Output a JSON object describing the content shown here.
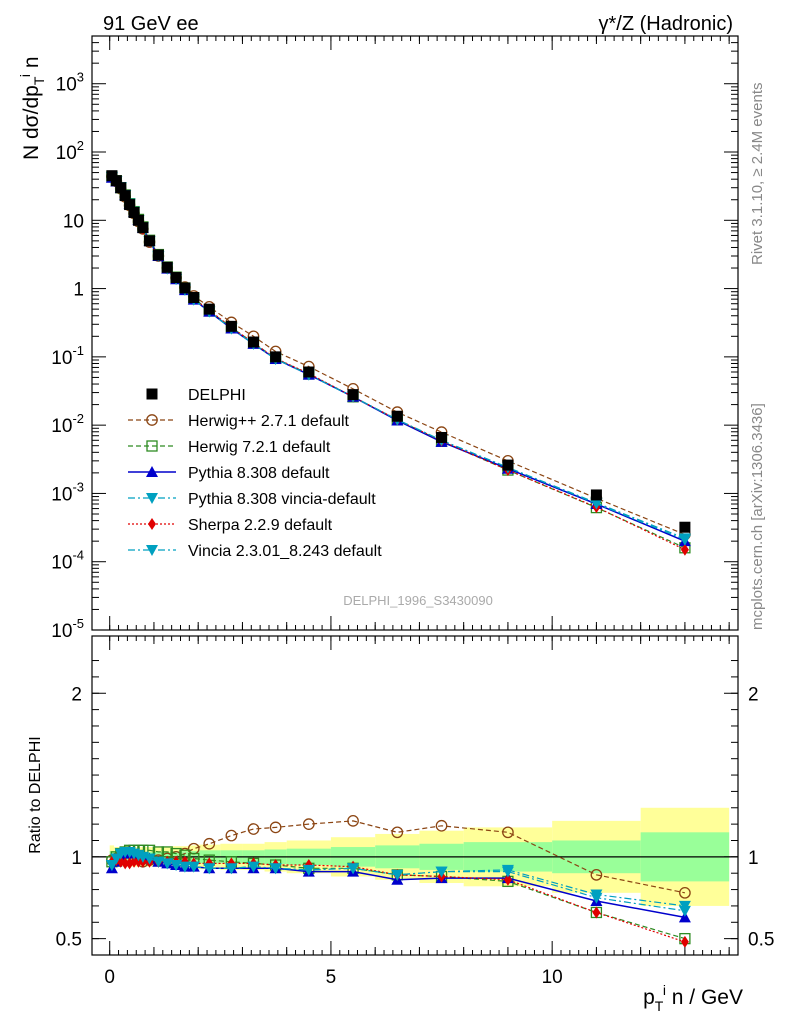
{
  "header": {
    "left_title": "91 GeV ee",
    "right_title": "γ*/Z (Hadronic)"
  },
  "side_text": {
    "rivet": "Rivet 3.1.10, ≥ 2.4M events",
    "mcplots": "mcplots.cern.ch [arXiv:1306.3436]"
  },
  "analysis_label": "DELPHI_1996_S3430090",
  "top_ylabel": "N dσ/dp_T^i n",
  "ratio_ylabel": "Ratio to DELPHI",
  "xlabel": "p_T^i n / GeV",
  "colors": {
    "data": "#000000",
    "herwigpp": "#8B4513",
    "herwig7": "#2E8B22",
    "pythia": "#0000CC",
    "pythia_vincia": "#00A0C0",
    "sherpa": "#E00000",
    "vincia": "#00A0C0",
    "band_inner": "#99FF99",
    "band_outer": "#FFFF99"
  },
  "chart_data": [
    {
      "type": "line",
      "name": "main",
      "yscale": "log",
      "xlim": [
        -0.4,
        14.2
      ],
      "ylim": [
        1e-05,
        5000
      ],
      "y_ticks": [
        "10^-5",
        "10^-4",
        "10^-3",
        "10^-2",
        "10^-1",
        "1",
        "10",
        "10^2",
        "10^3"
      ],
      "x": [
        0.05,
        0.15,
        0.25,
        0.35,
        0.45,
        0.55,
        0.65,
        0.75,
        0.9,
        1.1,
        1.3,
        1.5,
        1.7,
        1.9,
        2.25,
        2.75,
        3.25,
        3.75,
        4.5,
        5.5,
        6.5,
        7.5,
        9.0,
        11.0,
        13.0
      ],
      "legend_position": "left",
      "series": [
        {
          "name": "DELPHI",
          "key": "data",
          "values": [
            45,
            38,
            30,
            23,
            17,
            13,
            10,
            7.8,
            5.0,
            3.1,
            2.05,
            1.45,
            1.02,
            0.74,
            0.5,
            0.28,
            0.165,
            0.1,
            0.06,
            0.028,
            0.0135,
            0.0066,
            0.0026,
            0.00095,
            0.00032
          ]
        },
        {
          "name": "Herwig++ 2.7.1 default",
          "key": "herwigpp",
          "values": [
            44,
            37,
            29,
            22,
            16.5,
            12.6,
            9.6,
            7.5,
            4.8,
            3.0,
            2.0,
            1.44,
            1.05,
            0.78,
            0.54,
            0.32,
            0.2,
            0.12,
            0.072,
            0.034,
            0.0155,
            0.0079,
            0.003,
            0.00085,
            0.00025
          ]
        },
        {
          "name": "Herwig 7.2.1 default",
          "key": "herwig7",
          "values": [
            44,
            38,
            30,
            23.5,
            17.5,
            13.4,
            10.3,
            8.0,
            5.1,
            3.15,
            2.07,
            1.47,
            1.02,
            0.73,
            0.47,
            0.27,
            0.16,
            0.095,
            0.056,
            0.026,
            0.012,
            0.0058,
            0.0022,
            0.00062,
            0.00016
          ]
        },
        {
          "name": "Pythia 8.308 default",
          "key": "pythia",
          "values": [
            42,
            37,
            30,
            23.5,
            17.5,
            13.3,
            10.1,
            7.8,
            4.95,
            3.0,
            1.96,
            1.37,
            0.95,
            0.69,
            0.46,
            0.26,
            0.155,
            0.093,
            0.055,
            0.026,
            0.0117,
            0.0057,
            0.0023,
            0.0007,
            0.0002
          ]
        },
        {
          "name": "Pythia 8.308 vincia-default",
          "key": "pythia_vincia",
          "values": [
            43,
            37.5,
            30.5,
            23.5,
            17.5,
            13.3,
            10.1,
            7.8,
            4.95,
            3.0,
            1.96,
            1.38,
            0.96,
            0.69,
            0.46,
            0.26,
            0.155,
            0.093,
            0.055,
            0.026,
            0.012,
            0.006,
            0.0024,
            0.00073,
            0.00022
          ]
        },
        {
          "name": "Sherpa 2.2.9 default",
          "key": "sherpa",
          "values": [
            44,
            37,
            29,
            22,
            16.3,
            12.6,
            9.7,
            7.5,
            4.85,
            3.0,
            1.98,
            1.4,
            0.99,
            0.71,
            0.48,
            0.27,
            0.16,
            0.095,
            0.057,
            0.026,
            0.012,
            0.0059,
            0.0022,
            0.00063,
            0.00015
          ]
        },
        {
          "name": "Vincia 2.3.01_8.243 default",
          "key": "vincia",
          "values": [
            43,
            37.5,
            30.5,
            23.5,
            17.5,
            13.3,
            10.1,
            7.8,
            4.95,
            3.0,
            1.96,
            1.38,
            0.96,
            0.69,
            0.46,
            0.26,
            0.156,
            0.093,
            0.055,
            0.026,
            0.012,
            0.006,
            0.0024,
            0.00071,
            0.00021
          ]
        }
      ]
    },
    {
      "type": "line",
      "name": "ratio",
      "xlim": [
        -0.4,
        14.2
      ],
      "ylim": [
        0.4,
        2.35
      ],
      "y_ticks": [
        0.5,
        1,
        2
      ],
      "x_ticks": [
        0,
        5,
        10
      ],
      "reference_line": 1,
      "x": [
        0.05,
        0.15,
        0.25,
        0.35,
        0.45,
        0.55,
        0.65,
        0.75,
        0.9,
        1.1,
        1.3,
        1.5,
        1.7,
        1.9,
        2.25,
        2.75,
        3.25,
        3.75,
        4.5,
        5.5,
        6.5,
        7.5,
        9.0,
        11.0,
        13.0
      ],
      "bin_edges": [
        0.0,
        0.1,
        0.2,
        0.3,
        0.4,
        0.5,
        0.6,
        0.7,
        0.8,
        1.0,
        1.2,
        1.4,
        1.6,
        1.8,
        2.0,
        2.5,
        3.0,
        3.5,
        4.0,
        5.0,
        6.0,
        7.0,
        8.0,
        10.0,
        12.0,
        14.0
      ],
      "band_inner": [
        0.035,
        0.03,
        0.03,
        0.03,
        0.03,
        0.03,
        0.03,
        0.03,
        0.03,
        0.03,
        0.03,
        0.035,
        0.035,
        0.035,
        0.04,
        0.04,
        0.04,
        0.045,
        0.05,
        0.06,
        0.07,
        0.08,
        0.09,
        0.1,
        0.15
      ],
      "band_outer": [
        0.07,
        0.06,
        0.06,
        0.06,
        0.06,
        0.06,
        0.06,
        0.06,
        0.06,
        0.06,
        0.06,
        0.065,
        0.065,
        0.07,
        0.075,
        0.08,
        0.08,
        0.09,
        0.1,
        0.12,
        0.14,
        0.16,
        0.18,
        0.22,
        0.3
      ],
      "series": [
        {
          "name": "Herwig++ 2.7.1 default",
          "key": "herwigpp",
          "values": [
            0.98,
            0.99,
            1.0,
            1.0,
            1.0,
            1.0,
            0.99,
            0.97,
            0.98,
            0.98,
            0.99,
            1.0,
            1.02,
            1.05,
            1.08,
            1.13,
            1.17,
            1.18,
            1.2,
            1.22,
            1.15,
            1.19,
            1.15,
            0.89,
            0.78
          ]
        },
        {
          "name": "Herwig 7.2.1 default",
          "key": "herwig7",
          "values": [
            0.97,
            1.0,
            1.02,
            1.03,
            1.04,
            1.04,
            1.04,
            1.04,
            1.04,
            1.03,
            1.03,
            1.02,
            1.01,
            0.99,
            0.98,
            0.97,
            0.96,
            0.95,
            0.93,
            0.93,
            0.89,
            0.88,
            0.85,
            0.66,
            0.5
          ]
        },
        {
          "name": "Pythia 8.308 default",
          "key": "pythia",
          "values": [
            0.93,
            0.97,
            1.0,
            1.02,
            1.03,
            1.02,
            1.01,
            1.0,
            0.99,
            0.97,
            0.96,
            0.95,
            0.94,
            0.94,
            0.93,
            0.93,
            0.93,
            0.93,
            0.91,
            0.91,
            0.86,
            0.87,
            0.87,
            0.73,
            0.63
          ]
        },
        {
          "name": "Pythia 8.308 vincia-default",
          "key": "pythia_vincia",
          "values": [
            0.95,
            0.99,
            1.02,
            1.03,
            1.03,
            1.02,
            1.01,
            1.0,
            0.99,
            0.97,
            0.96,
            0.95,
            0.94,
            0.94,
            0.93,
            0.93,
            0.94,
            0.93,
            0.92,
            0.93,
            0.89,
            0.91,
            0.92,
            0.77,
            0.7
          ]
        },
        {
          "name": "Sherpa 2.2.9 default",
          "key": "sherpa",
          "values": [
            0.97,
            0.98,
            0.97,
            0.96,
            0.96,
            0.97,
            0.97,
            0.97,
            0.97,
            0.97,
            0.97,
            0.97,
            0.97,
            0.96,
            0.96,
            0.96,
            0.96,
            0.95,
            0.95,
            0.94,
            0.89,
            0.88,
            0.86,
            0.66,
            0.48
          ]
        },
        {
          "name": "Vincia 2.3.01_8.243 default",
          "key": "vincia",
          "values": [
            0.95,
            0.99,
            1.02,
            1.03,
            1.03,
            1.02,
            1.01,
            1.0,
            0.99,
            0.97,
            0.96,
            0.95,
            0.94,
            0.94,
            0.93,
            0.93,
            0.94,
            0.93,
            0.92,
            0.93,
            0.89,
            0.91,
            0.91,
            0.75,
            0.67
          ]
        }
      ]
    }
  ]
}
